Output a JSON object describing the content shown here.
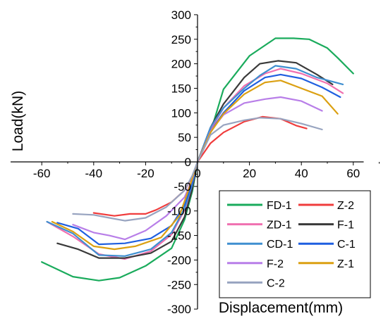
{
  "chart_data": {
    "type": "line",
    "xlabel": "Displacement(mm)",
    "ylabel": "Load(kN)",
    "xlim": [
      -72,
      64
    ],
    "ylim": [
      -300,
      300
    ],
    "xticks": [
      -60,
      -40,
      -20,
      0,
      20,
      40,
      60
    ],
    "yticks": [
      -300,
      -250,
      -200,
      -150,
      -100,
      -50,
      0,
      50,
      100,
      150,
      200,
      250,
      300
    ],
    "legend_position": "bottom-right",
    "series": [
      {
        "name": "FD-1",
        "color": "#1aab5c",
        "points": [
          [
            -60,
            -204
          ],
          [
            -48,
            -234
          ],
          [
            -38,
            -242
          ],
          [
            -30,
            -236
          ],
          [
            -20,
            -212
          ],
          [
            -10,
            -176
          ],
          [
            -5,
            -118
          ],
          [
            -2,
            -60
          ],
          [
            0,
            0
          ],
          [
            5,
            60
          ],
          [
            10,
            148
          ],
          [
            20,
            216
          ],
          [
            30,
            252
          ],
          [
            37,
            252
          ],
          [
            43,
            250
          ],
          [
            50,
            232
          ],
          [
            54,
            212
          ],
          [
            60,
            180
          ]
        ]
      },
      {
        "name": "Z-2",
        "color": "#f03c3c",
        "points": [
          [
            -40,
            -104
          ],
          [
            -32,
            -110
          ],
          [
            -26,
            -106
          ],
          [
            -20,
            -106
          ],
          [
            -16,
            -98
          ],
          [
            -10,
            -82
          ],
          [
            -5,
            -58
          ],
          [
            -2,
            -30
          ],
          [
            0,
            0
          ],
          [
            5,
            38
          ],
          [
            10,
            60
          ],
          [
            18,
            82
          ],
          [
            25,
            92
          ],
          [
            32,
            88
          ],
          [
            38,
            74
          ],
          [
            42,
            68
          ]
        ]
      },
      {
        "name": "ZD-1",
        "color": "#f070b0",
        "points": [
          [
            -58,
            -122
          ],
          [
            -48,
            -152
          ],
          [
            -38,
            -188
          ],
          [
            -28,
            -198
          ],
          [
            -18,
            -182
          ],
          [
            -10,
            -148
          ],
          [
            -5,
            -98
          ],
          [
            -2,
            -48
          ],
          [
            0,
            0
          ],
          [
            5,
            65
          ],
          [
            10,
            110
          ],
          [
            18,
            155
          ],
          [
            26,
            180
          ],
          [
            32,
            190
          ],
          [
            40,
            180
          ],
          [
            50,
            160
          ],
          [
            56,
            140
          ]
        ]
      },
      {
        "name": "F-1",
        "color": "#3a3a3a",
        "points": [
          [
            -54,
            -166
          ],
          [
            -46,
            -178
          ],
          [
            -38,
            -196
          ],
          [
            -28,
            -196
          ],
          [
            -18,
            -186
          ],
          [
            -10,
            -162
          ],
          [
            -5,
            -112
          ],
          [
            -2,
            -55
          ],
          [
            0,
            0
          ],
          [
            5,
            70
          ],
          [
            10,
            118
          ],
          [
            18,
            172
          ],
          [
            24,
            200
          ],
          [
            31,
            206
          ],
          [
            38,
            202
          ],
          [
            46,
            178
          ],
          [
            52,
            158
          ]
        ]
      },
      {
        "name": "CD-1",
        "color": "#3f8fd0",
        "points": [
          [
            -58,
            -122
          ],
          [
            -48,
            -146
          ],
          [
            -38,
            -190
          ],
          [
            -28,
            -192
          ],
          [
            -18,
            -178
          ],
          [
            -10,
            -144
          ],
          [
            -5,
            -95
          ],
          [
            -2,
            -46
          ],
          [
            0,
            0
          ],
          [
            5,
            70
          ],
          [
            10,
            110
          ],
          [
            18,
            150
          ],
          [
            24,
            176
          ],
          [
            30,
            196
          ],
          [
            38,
            190
          ],
          [
            46,
            172
          ],
          [
            56,
            158
          ]
        ]
      },
      {
        "name": "C-1",
        "color": "#1f5fe0",
        "points": [
          [
            -54,
            -124
          ],
          [
            -46,
            -136
          ],
          [
            -38,
            -168
          ],
          [
            -28,
            -166
          ],
          [
            -18,
            -156
          ],
          [
            -10,
            -130
          ],
          [
            -5,
            -88
          ],
          [
            -2,
            -42
          ],
          [
            0,
            0
          ],
          [
            5,
            62
          ],
          [
            10,
            100
          ],
          [
            18,
            145
          ],
          [
            26,
            172
          ],
          [
            32,
            178
          ],
          [
            40,
            170
          ],
          [
            48,
            152
          ],
          [
            55,
            132
          ]
        ]
      },
      {
        "name": "F-2",
        "color": "#b87ee8",
        "points": [
          [
            -48,
            -128
          ],
          [
            -40,
            -144
          ],
          [
            -34,
            -150
          ],
          [
            -28,
            -158
          ],
          [
            -20,
            -140
          ],
          [
            -12,
            -110
          ],
          [
            -5,
            -72
          ],
          [
            -2,
            -36
          ],
          [
            0,
            0
          ],
          [
            5,
            62
          ],
          [
            10,
            96
          ],
          [
            18,
            120
          ],
          [
            26,
            128
          ],
          [
            32,
            132
          ],
          [
            40,
            124
          ],
          [
            48,
            104
          ]
        ]
      },
      {
        "name": "Z-1",
        "color": "#dba012",
        "points": [
          [
            -56,
            -122
          ],
          [
            -48,
            -142
          ],
          [
            -40,
            -172
          ],
          [
            -32,
            -178
          ],
          [
            -24,
            -172
          ],
          [
            -14,
            -154
          ],
          [
            -7,
            -110
          ],
          [
            -3,
            -50
          ],
          [
            0,
            0
          ],
          [
            5,
            60
          ],
          [
            10,
            98
          ],
          [
            18,
            138
          ],
          [
            26,
            162
          ],
          [
            32,
            166
          ],
          [
            40,
            150
          ],
          [
            48,
            134
          ],
          [
            54,
            98
          ]
        ]
      },
      {
        "name": "C-2",
        "color": "#98a4c0",
        "points": [
          [
            -48,
            -106
          ],
          [
            -40,
            -108
          ],
          [
            -34,
            -114
          ],
          [
            -28,
            -120
          ],
          [
            -20,
            -114
          ],
          [
            -12,
            -92
          ],
          [
            -5,
            -58
          ],
          [
            -2,
            -28
          ],
          [
            0,
            0
          ],
          [
            5,
            55
          ],
          [
            10,
            75
          ],
          [
            18,
            85
          ],
          [
            24,
            90
          ],
          [
            32,
            88
          ],
          [
            40,
            78
          ],
          [
            48,
            66
          ]
        ]
      }
    ]
  }
}
